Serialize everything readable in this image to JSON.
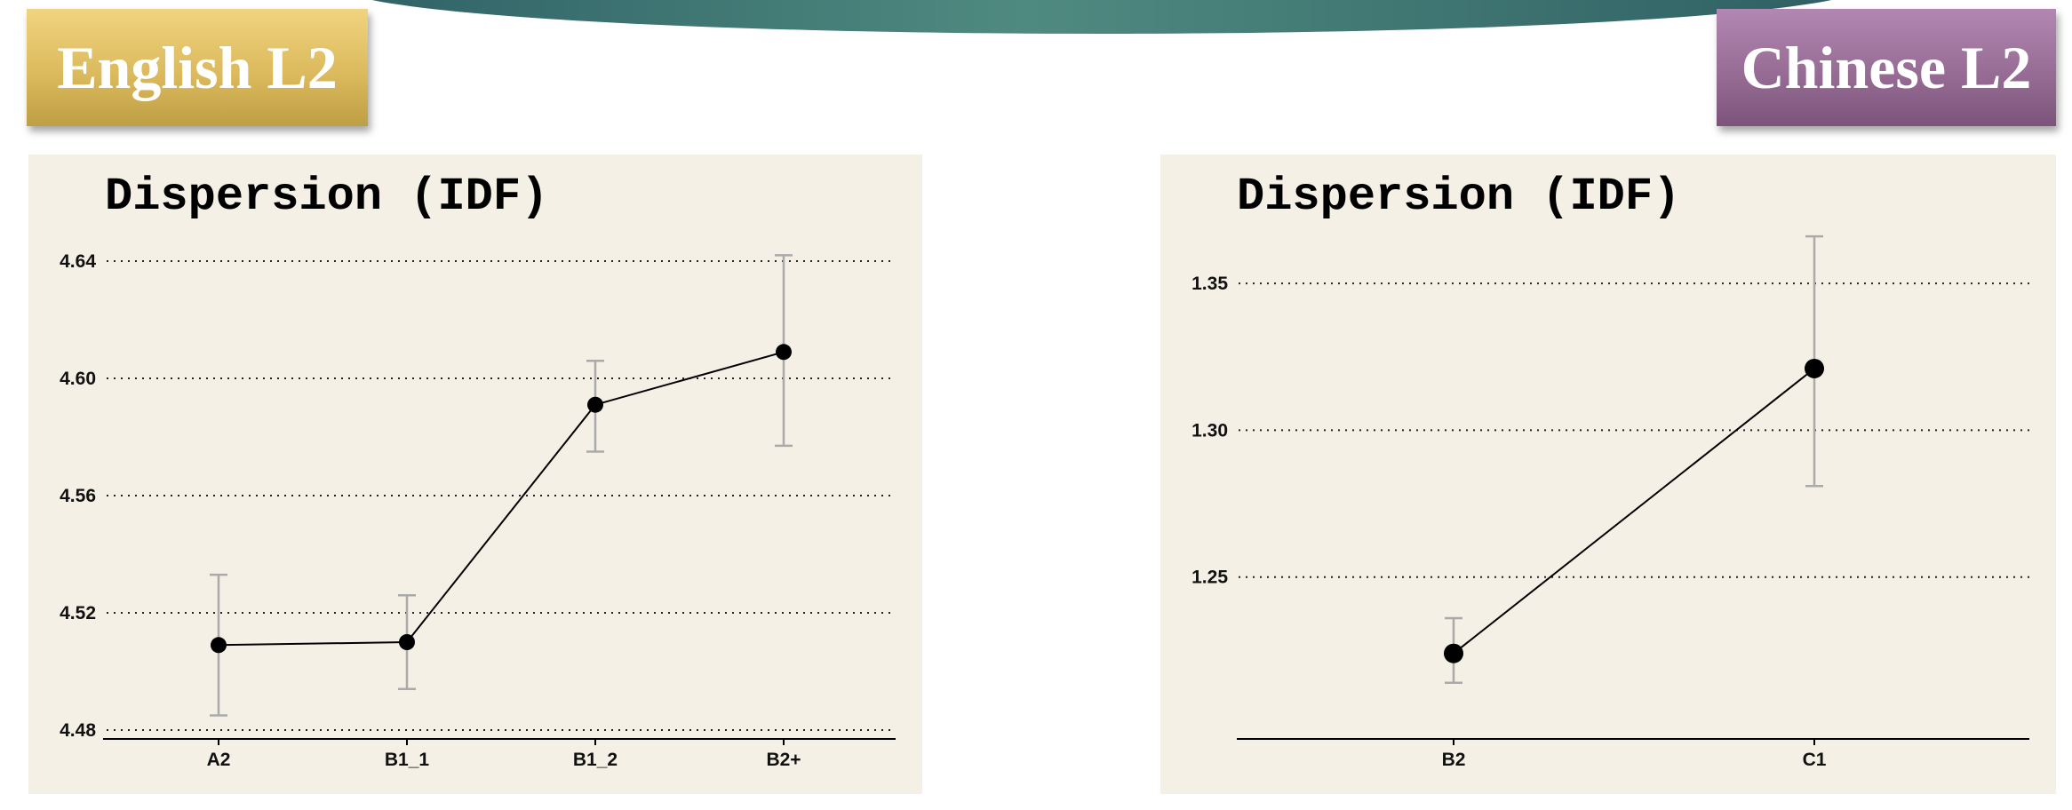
{
  "banners": {
    "left": "English L2",
    "right": "Chinese L2"
  },
  "colors": {
    "left_banner": "#dcba5e",
    "right_banner": "#946a93",
    "panel_background": "#f5f0e5",
    "errorbar": "#aaaaaa"
  },
  "chart_data": [
    {
      "type": "line",
      "title": "Dispersion (IDF)",
      "categories": [
        "A2",
        "B1_1",
        "B1_2",
        "B2+"
      ],
      "values": [
        4.509,
        4.51,
        4.591,
        4.609
      ],
      "error_bars": [
        [
          4.485,
          4.533
        ],
        [
          4.494,
          4.526
        ],
        [
          4.575,
          4.606
        ],
        [
          4.577,
          4.642
        ]
      ],
      "ylim": [
        4.48,
        4.64
      ],
      "yticks": [
        "4.48",
        "4.52",
        "4.56",
        "4.60",
        "4.64"
      ],
      "grid": true
    },
    {
      "type": "line",
      "title": "Dispersion (IDF)",
      "categories": [
        "B2",
        "C1"
      ],
      "values": [
        1.224,
        1.321
      ],
      "error_bars": [
        [
          1.214,
          1.236
        ],
        [
          1.281,
          1.366
        ]
      ],
      "ylim": [
        1.21,
        1.36
      ],
      "yticks": [
        "1.25",
        "1.30",
        "1.35"
      ],
      "grid": true
    }
  ]
}
